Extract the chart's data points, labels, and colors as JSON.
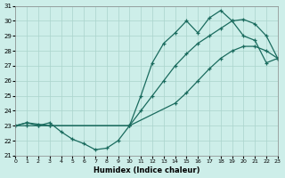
{
  "xlabel": "Humidex (Indice chaleur)",
  "xlim": [
    0,
    23
  ],
  "ylim": [
    21,
    31
  ],
  "xticks": [
    0,
    1,
    2,
    3,
    4,
    5,
    6,
    7,
    8,
    9,
    10,
    11,
    12,
    13,
    14,
    15,
    16,
    17,
    18,
    19,
    20,
    21,
    22,
    23
  ],
  "yticks": [
    21,
    22,
    23,
    24,
    25,
    26,
    27,
    28,
    29,
    30,
    31
  ],
  "bg_color": "#cdeee9",
  "grid_color": "#aad4cc",
  "line_color": "#1a6b5e",
  "line1_x": [
    0,
    1,
    2,
    3,
    4,
    5,
    6,
    7,
    8,
    9,
    10,
    11,
    12,
    13,
    14,
    15,
    16,
    17,
    18,
    19,
    20,
    21,
    22,
    23
  ],
  "line1_y": [
    23.0,
    23.2,
    23.0,
    23.2,
    22.6,
    22.1,
    21.8,
    21.4,
    21.5,
    22.0,
    23.0,
    25.0,
    27.2,
    28.5,
    29.2,
    30.0,
    29.2,
    30.2,
    30.7,
    30.0,
    29.0,
    28.7,
    27.2,
    27.5
  ],
  "line2_x": [
    0,
    1,
    2,
    3,
    10,
    11,
    12,
    13,
    14,
    15,
    16,
    17,
    18,
    19,
    20,
    21,
    22,
    23
  ],
  "line2_y": [
    23.0,
    23.2,
    23.1,
    23.0,
    23.0,
    24.0,
    25.0,
    26.0,
    27.0,
    27.8,
    28.5,
    29.0,
    29.5,
    30.0,
    30.1,
    29.8,
    29.0,
    27.5
  ],
  "line3_x": [
    0,
    1,
    2,
    3,
    10,
    14,
    15,
    16,
    17,
    18,
    19,
    20,
    21,
    22,
    23
  ],
  "line3_y": [
    23.0,
    23.0,
    23.0,
    23.0,
    23.0,
    24.5,
    25.2,
    26.0,
    26.8,
    27.5,
    28.0,
    28.3,
    28.3,
    28.0,
    27.5
  ]
}
